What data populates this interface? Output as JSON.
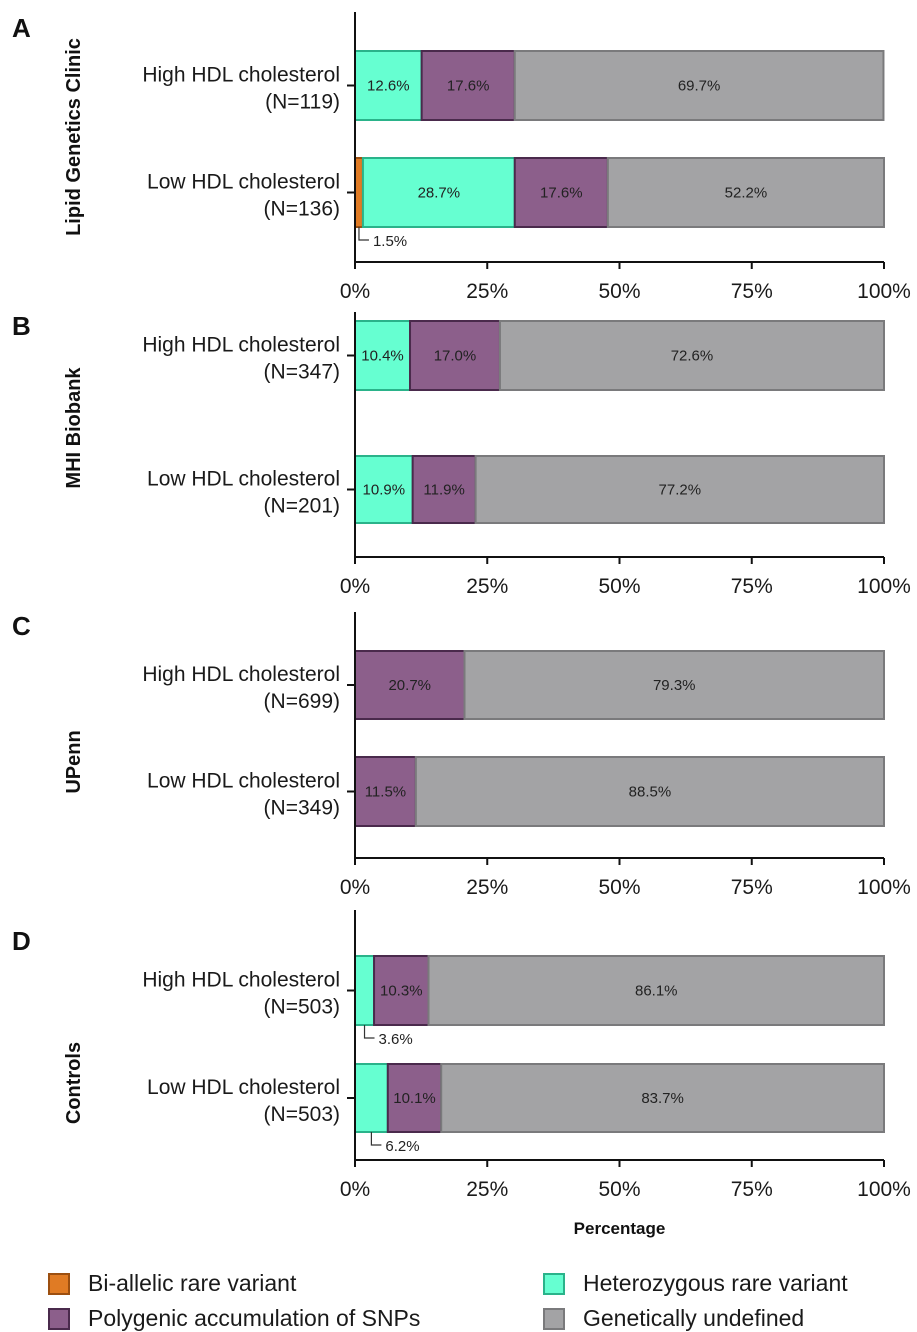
{
  "colors": {
    "biallelic": "#e07b24",
    "heterozygous": "#66ffd1",
    "polygenic": "#8c5f8b",
    "undefined": "#a3a3a5",
    "border_biallelic": "#9c4f10",
    "border_heterozygous": "#2ab38a",
    "border_polygenic": "#4a2a4c",
    "border_undefined": "#7a7a7c"
  },
  "legend": [
    {
      "key": "biallelic",
      "label": "Bi-allelic rare variant"
    },
    {
      "key": "heterozygous",
      "label": "Heterozygous rare variant"
    },
    {
      "key": "polygenic",
      "label": "Polygenic accumulation of SNPs"
    },
    {
      "key": "undefined",
      "label": "Genetically undefined"
    }
  ],
  "chart_data": [
    {
      "type": "bar",
      "orientation": "horizontal",
      "stacked": true,
      "panel": "A",
      "group_label": "Lipid Genetics Clinic",
      "xlabel": "",
      "xlim": [
        0,
        100
      ],
      "xticks": [
        "0%",
        "25%",
        "50%",
        "75%",
        "100%"
      ],
      "categories": [
        {
          "label": "High HDL cholesterol",
          "n": "(N=119)"
        },
        {
          "label": "Low HDL cholesterol",
          "n": "(N=136)"
        }
      ],
      "series": [
        {
          "key": "biallelic",
          "values": [
            0,
            1.5
          ]
        },
        {
          "key": "heterozygous",
          "values": [
            12.6,
            28.7
          ]
        },
        {
          "key": "polygenic",
          "values": [
            17.6,
            17.6
          ]
        },
        {
          "key": "undefined",
          "values": [
            69.7,
            52.2
          ]
        }
      ],
      "labels": [
        [
          null,
          "12.6%",
          "17.6%",
          "69.7%"
        ],
        [
          "1.5%",
          "28.7%",
          "17.6%",
          "52.2%"
        ]
      ],
      "callouts": [
        [
          0,
          null,
          null,
          null
        ],
        [
          1,
          null,
          null,
          null
        ]
      ]
    },
    {
      "type": "bar",
      "orientation": "horizontal",
      "stacked": true,
      "panel": "B",
      "group_label": "MHI Biobank",
      "xlabel": "",
      "xlim": [
        0,
        100
      ],
      "xticks": [
        "0%",
        "25%",
        "50%",
        "75%",
        "100%"
      ],
      "categories": [
        {
          "label": "High HDL cholesterol",
          "n": "(N=347)"
        },
        {
          "label": "Low HDL cholesterol",
          "n": "(N=201)"
        }
      ],
      "series": [
        {
          "key": "biallelic",
          "values": [
            0,
            0
          ]
        },
        {
          "key": "heterozygous",
          "values": [
            10.4,
            10.9
          ]
        },
        {
          "key": "polygenic",
          "values": [
            17.0,
            11.9
          ]
        },
        {
          "key": "undefined",
          "values": [
            72.6,
            77.2
          ]
        }
      ],
      "labels": [
        [
          null,
          "10.4%",
          "17.0%",
          "72.6%"
        ],
        [
          null,
          "10.9%",
          "11.9%",
          "77.2%"
        ]
      ],
      "callouts": [
        [
          0,
          0,
          0,
          0
        ],
        [
          0,
          0,
          0,
          0
        ]
      ]
    },
    {
      "type": "bar",
      "orientation": "horizontal",
      "stacked": true,
      "panel": "C",
      "group_label": "UPenn",
      "xlabel": "",
      "xlim": [
        0,
        100
      ],
      "xticks": [
        "0%",
        "25%",
        "50%",
        "75%",
        "100%"
      ],
      "categories": [
        {
          "label": "High HDL cholesterol",
          "n": "(N=699)"
        },
        {
          "label": "Low HDL cholesterol",
          "n": "(N=349)"
        }
      ],
      "series": [
        {
          "key": "biallelic",
          "values": [
            0,
            0
          ]
        },
        {
          "key": "heterozygous",
          "values": [
            0,
            0
          ]
        },
        {
          "key": "polygenic",
          "values": [
            20.7,
            11.5
          ]
        },
        {
          "key": "undefined",
          "values": [
            79.3,
            88.5
          ]
        }
      ],
      "labels": [
        [
          null,
          null,
          "20.7%",
          "79.3%"
        ],
        [
          null,
          null,
          "11.5%",
          "88.5%"
        ]
      ],
      "callouts": [
        [
          0,
          0,
          0,
          0
        ],
        [
          0,
          0,
          0,
          0
        ]
      ]
    },
    {
      "type": "bar",
      "orientation": "horizontal",
      "stacked": true,
      "panel": "D",
      "group_label": "Controls",
      "xlabel": "Percentage",
      "xlim": [
        0,
        100
      ],
      "xticks": [
        "0%",
        "25%",
        "50%",
        "75%",
        "100%"
      ],
      "categories": [
        {
          "label": "High HDL cholesterol",
          "n": "(N=503)"
        },
        {
          "label": "Low HDL cholesterol",
          "n": "(N=503)"
        }
      ],
      "series": [
        {
          "key": "biallelic",
          "values": [
            0,
            0
          ]
        },
        {
          "key": "heterozygous",
          "values": [
            3.6,
            6.2
          ]
        },
        {
          "key": "polygenic",
          "values": [
            10.3,
            10.1
          ]
        },
        {
          "key": "undefined",
          "values": [
            86.1,
            83.7
          ]
        }
      ],
      "labels": [
        [
          null,
          "3.6%",
          "10.3%",
          "86.1%"
        ],
        [
          null,
          "6.2%",
          "10.1%",
          "83.7%"
        ]
      ],
      "callouts": [
        [
          0,
          1,
          0,
          0
        ],
        [
          0,
          1,
          0,
          0
        ]
      ]
    }
  ]
}
